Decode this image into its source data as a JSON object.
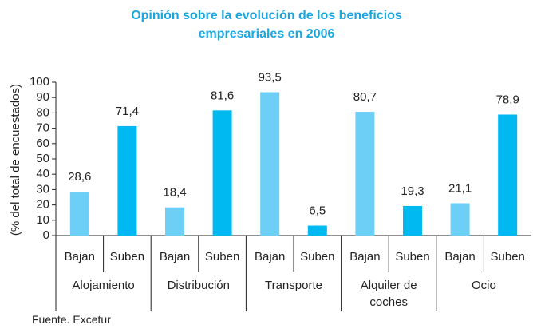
{
  "chart_data": {
    "type": "bar",
    "title": "Opinión sobre la evolución de los beneficios empresariales en 2006",
    "ylabel": "(% del total de encuestados)",
    "categories": [
      "Bajan",
      "Suben",
      "Bajan",
      "Suben",
      "Bajan",
      "Suben",
      "Bajan",
      "Suben",
      "Bajan",
      "Suben"
    ],
    "groups": [
      "Alojamiento",
      "Distribución",
      "Transporte",
      "Alquiler de coches",
      "Ocio"
    ],
    "values": [
      28.6,
      71.4,
      18.4,
      81.6,
      93.5,
      6.5,
      80.7,
      19.3,
      21.1,
      78.9
    ],
    "value_labels": [
      "28,6",
      "71,4",
      "18,4",
      "81,6",
      "93,5",
      "6,5",
      "80,7",
      "19,3",
      "21,1",
      "78,9"
    ],
    "colors": [
      "#6dcff6",
      "#00b9f1",
      "#6dcff6",
      "#00b9f1",
      "#6dcff6",
      "#00b9f1",
      "#6dcff6",
      "#00b9f1",
      "#6dcff6",
      "#00b9f1"
    ],
    "ylim": [
      0,
      100
    ],
    "yticks": [
      0,
      10,
      20,
      30,
      40,
      50,
      60,
      70,
      80,
      90,
      100
    ],
    "source": "Fuente. Excetur"
  }
}
